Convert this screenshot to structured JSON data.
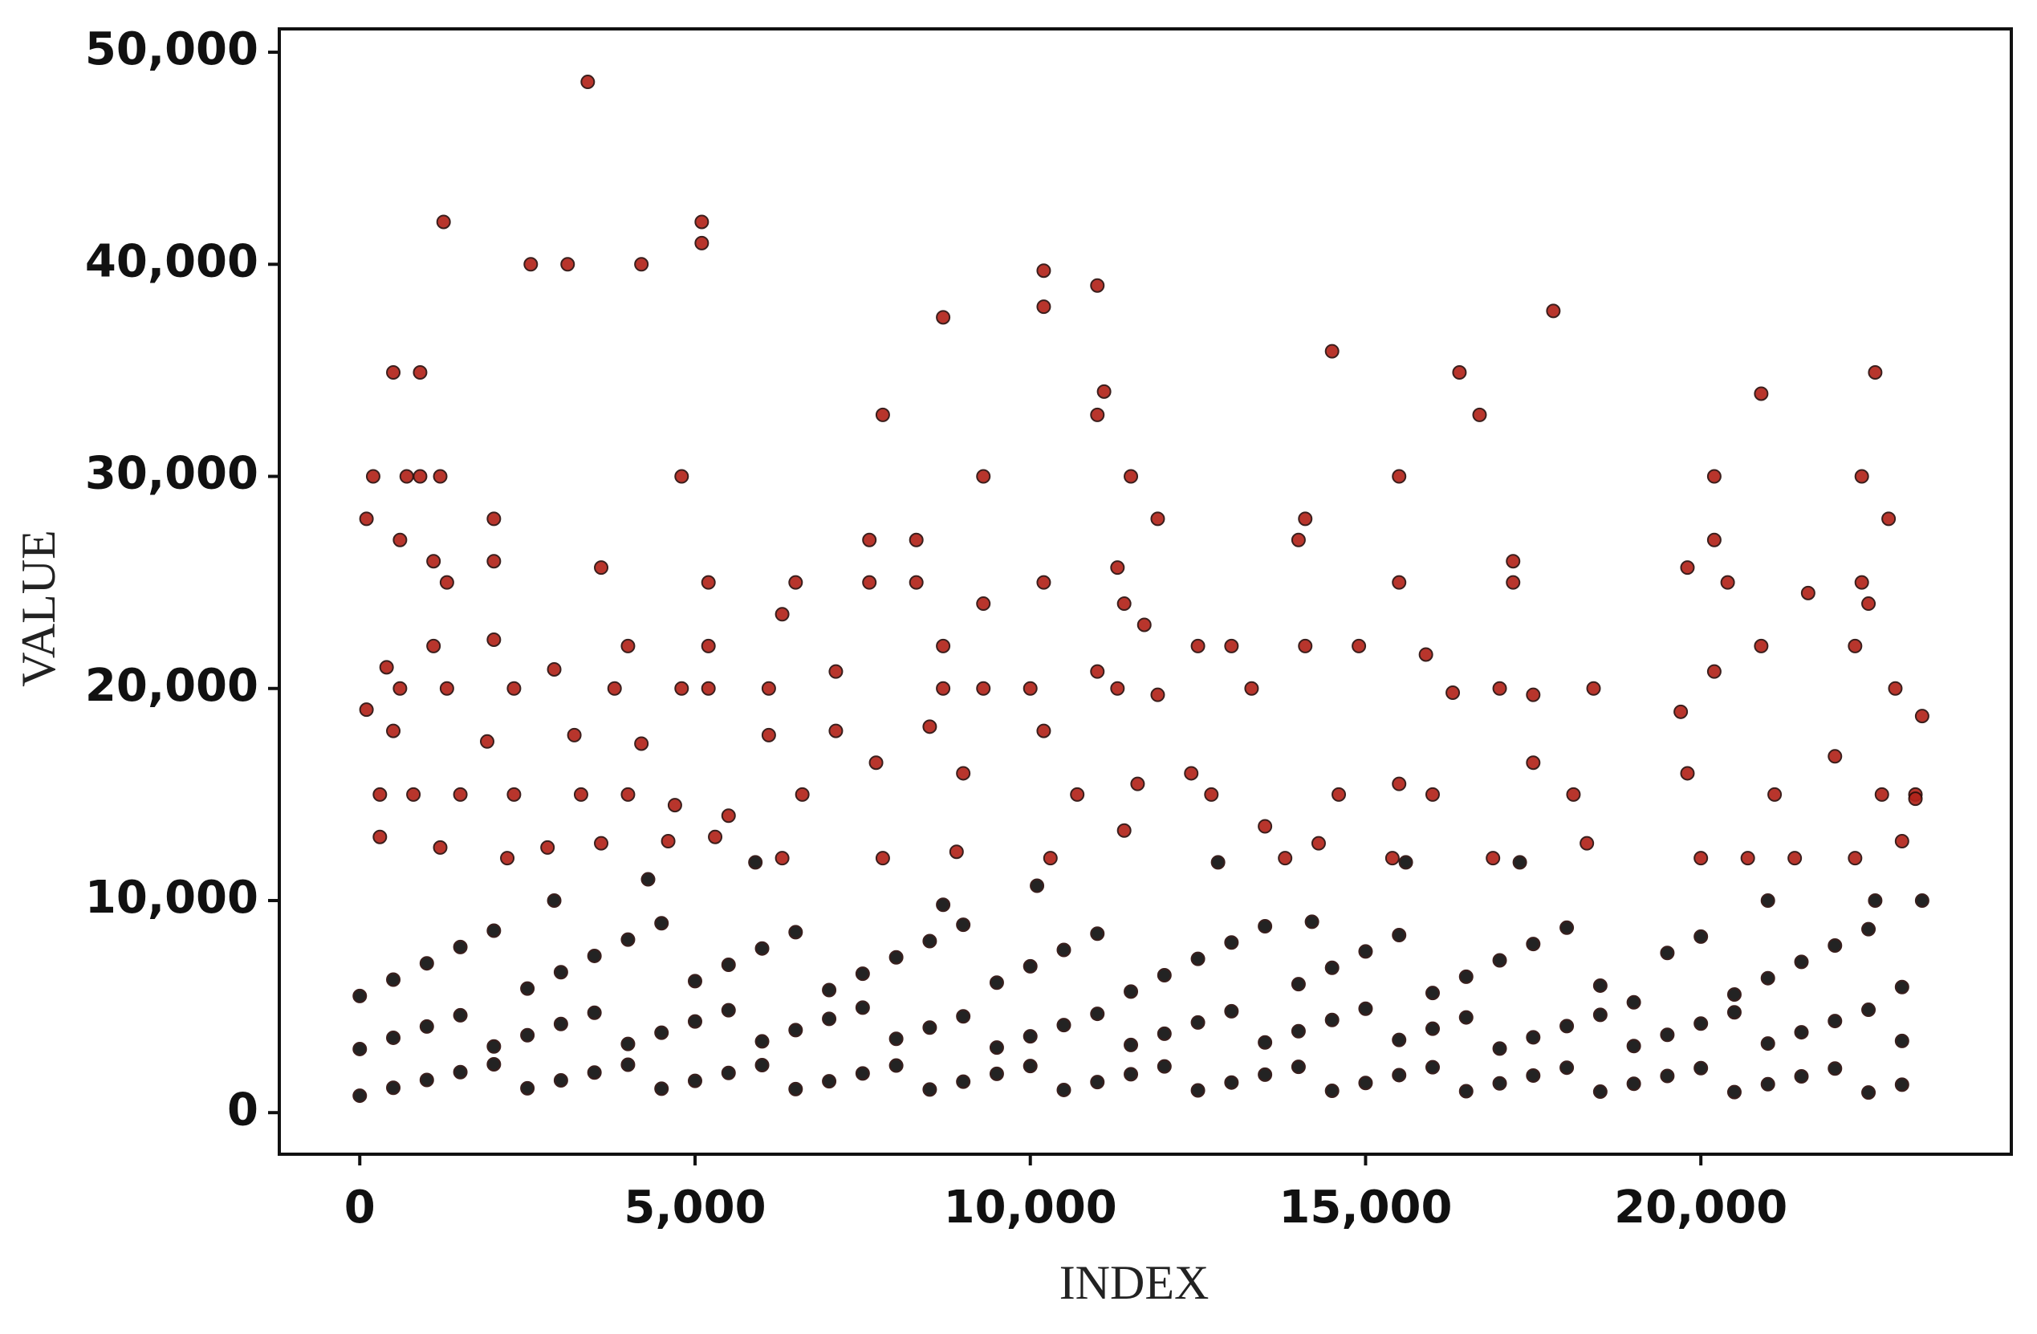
{
  "chart_data": {
    "type": "scatter",
    "x_label": "INDEX",
    "y_label": "VALUE",
    "xlim": [
      -1200,
      24630
    ],
    "ylim": [
      -1960,
      51100
    ],
    "xticks": [
      0,
      {
        "value": 5000,
        "label": "5,000"
      },
      {
        "value": 10000,
        "label": "10,000"
      },
      {
        "value": 15000,
        "label": "15,000"
      },
      {
        "value": 20000,
        "label": "20,000"
      }
    ],
    "yticks": [
      0,
      {
        "value": 10000,
        "label": "10,000"
      },
      {
        "value": 20000,
        "label": "20,000"
      },
      {
        "value": 30000,
        "label": "30,000"
      },
      {
        "value": 40000,
        "label": "40,000"
      },
      {
        "value": 50000,
        "label": "50,000"
      }
    ],
    "grid": false,
    "series": [
      {
        "color": "#111111",
        "x": [
          0,
          500,
          1000,
          1500,
          2000,
          2500,
          3000,
          3500,
          4000,
          4500,
          5000,
          5500,
          6000,
          6500,
          7000,
          7500,
          8000,
          8500,
          9000,
          9500,
          10000,
          10500,
          11000,
          11500,
          12000,
          12500,
          13000,
          13500,
          14000,
          14500,
          15000,
          15500,
          16000,
          16500,
          17000,
          17500,
          18000,
          18500,
          19000,
          19500,
          20000,
          20500,
          21000,
          21500,
          22000,
          22500,
          23000,
          0,
          500,
          1000,
          1500,
          2000,
          2500,
          3000,
          3500,
          4000,
          4500,
          5000,
          5500,
          6000,
          6500,
          7000,
          7500,
          8000,
          8500,
          9000,
          9500,
          10000,
          10500,
          11000,
          11500,
          12000,
          12500,
          13000,
          13500,
          14000,
          14500,
          15000,
          15500,
          16000,
          16500,
          17000,
          17500,
          18000,
          18500,
          19000,
          19500,
          20000,
          20500,
          21000,
          21500,
          22000,
          22500,
          23000,
          0,
          500,
          1000,
          1500,
          2000,
          2500,
          3000,
          3500,
          4000,
          4500,
          5000,
          5500,
          6000,
          6500,
          7000,
          7500,
          8000,
          8500,
          9000,
          9500,
          10000,
          10500,
          11000,
          11500,
          12000,
          12500,
          13000,
          13500,
          14000,
          14500,
          15000,
          15500,
          16000,
          16500,
          17000,
          17500,
          18000,
          18500,
          19000,
          19500,
          20000,
          20500,
          21000,
          21500,
          22000,
          22500,
          23000,
          2900,
          4300,
          5900,
          8700,
          10100,
          12800,
          14200,
          15600,
          17300,
          21000,
          22600,
          23300
        ],
        "values": [
          800,
          1170,
          1540,
          1910,
          2280,
          1150,
          1520,
          1890,
          2260,
          1130,
          1500,
          1870,
          2240,
          1110,
          1480,
          1850,
          2220,
          1090,
          1460,
          1830,
          2200,
          1070,
          1440,
          1810,
          2180,
          1050,
          1420,
          1790,
          2160,
          1030,
          1400,
          1770,
          2140,
          1010,
          1380,
          1750,
          2120,
          990,
          1360,
          1730,
          2100,
          970,
          1340,
          1710,
          2080,
          950,
          1320,
          3000,
          3530,
          4060,
          4590,
          3120,
          3650,
          4180,
          4710,
          3240,
          3770,
          4300,
          4830,
          3360,
          3890,
          4420,
          4950,
          3480,
          4010,
          4540,
          3070,
          3600,
          4130,
          4660,
          3190,
          3720,
          4250,
          4780,
          3310,
          3840,
          4370,
          4900,
          3430,
          3960,
          4490,
          3020,
          3550,
          4080,
          4610,
          3140,
          3670,
          4200,
          4730,
          3260,
          3790,
          4320,
          4850,
          3380,
          5500,
          6270,
          7040,
          7810,
          8580,
          5850,
          6620,
          7390,
          8160,
          8930,
          6200,
          6970,
          7740,
          8510,
          5780,
          6550,
          7320,
          8090,
          8860,
          6130,
          6900,
          7670,
          8440,
          5710,
          6480,
          7250,
          8020,
          8790,
          6060,
          6830,
          7600,
          8370,
          5640,
          6410,
          7180,
          7950,
          8720,
          5990,
          5200,
          7530,
          8300,
          5570,
          6340,
          7110,
          7880,
          8650,
          5920,
          10000,
          11000,
          11800,
          9800,
          10700,
          11800,
          9000,
          11800,
          11800,
          10000,
          10000,
          10000
        ]
      },
      {
        "color": "#b3241b",
        "x": [
          3400,
          1250,
          2550,
          3100,
          4200,
          5100,
          5100,
          10200,
          10200,
          11000,
          8700,
          17800,
          14500,
          16400,
          22600,
          500,
          900,
          11100,
          20900,
          7800,
          11000,
          16700,
          200,
          700,
          900,
          1200,
          4800,
          9300,
          11500,
          15500,
          20200,
          22400,
          100,
          2000,
          11900,
          14100,
          22800,
          600,
          7600,
          8300,
          14000,
          20200,
          1100,
          1300,
          2000,
          3600,
          11300,
          17200,
          19800,
          5200,
          6500,
          7600,
          8300,
          10200,
          15500,
          17200,
          20400,
          22400,
          6300,
          9300,
          11400,
          22500,
          11700,
          21600,
          2000,
          1100,
          4000,
          5200,
          8700,
          12500,
          13000,
          14100,
          14900,
          20900,
          22300,
          15900,
          400,
          2900,
          7100,
          11000,
          20200,
          600,
          1300,
          2300,
          3800,
          4800,
          5200,
          6100,
          8700,
          9300,
          10000,
          11300,
          11900,
          13300,
          16300,
          17000,
          17500,
          18400,
          19700,
          22900,
          23300,
          100,
          500,
          1900,
          3200,
          4200,
          6100,
          7100,
          8500,
          10200,
          12400,
          13500,
          14600,
          15500,
          16000,
          17500,
          18100,
          19800,
          21100,
          22000,
          22700,
          23200,
          300,
          800,
          1500,
          2300,
          3300,
          4000,
          4700,
          5500,
          6600,
          7700,
          9000,
          10700,
          11600,
          12700,
          300,
          1200,
          2200,
          2800,
          3600,
          4600,
          5300,
          6300,
          7800,
          8900,
          10300,
          11400,
          13800,
          14300,
          15400,
          16900,
          18300,
          20000,
          20700,
          21400,
          22300,
          23000,
          23200
        ],
        "values": [
          48600,
          42000,
          40000,
          40000,
          40000,
          42000,
          41000,
          39700,
          38000,
          39000,
          37500,
          37800,
          35900,
          34900,
          34900,
          34900,
          34900,
          34000,
          33900,
          32900,
          32900,
          32900,
          30000,
          30000,
          30000,
          30000,
          30000,
          30000,
          30000,
          30000,
          30000,
          30000,
          28000,
          28000,
          28000,
          28000,
          28000,
          27000,
          27000,
          27000,
          27000,
          27000,
          26000,
          25000,
          26000,
          25700,
          25700,
          26000,
          25700,
          25000,
          25000,
          25000,
          25000,
          25000,
          25000,
          25000,
          25000,
          25000,
          23500,
          24000,
          24000,
          24000,
          23000,
          24500,
          22300,
          22000,
          22000,
          22000,
          22000,
          22000,
          22000,
          22000,
          22000,
          22000,
          22000,
          21600,
          21000,
          20900,
          20800,
          20800,
          20800,
          20000,
          20000,
          20000,
          20000,
          20000,
          20000,
          20000,
          20000,
          20000,
          20000,
          20000,
          19700,
          20000,
          19800,
          20000,
          19700,
          20000,
          18900,
          20000,
          18700,
          19000,
          18000,
          17500,
          17800,
          17400,
          17800,
          18000,
          18200,
          18000,
          16000,
          13500,
          15000,
          15500,
          15000,
          16500,
          15000,
          16000,
          15000,
          16800,
          15000,
          15000,
          15000,
          15000,
          15000,
          15000,
          15000,
          15000,
          14500,
          14000,
          15000,
          16500,
          16000,
          15000,
          15500,
          15000,
          13000,
          12500,
          12000,
          12500,
          12700,
          12800,
          13000,
          12000,
          12000,
          12300,
          12000,
          13300,
          12000,
          12700,
          12000,
          12000,
          12700,
          12000,
          12000,
          12000,
          12000,
          12800,
          14800
        ]
      }
    ]
  }
}
